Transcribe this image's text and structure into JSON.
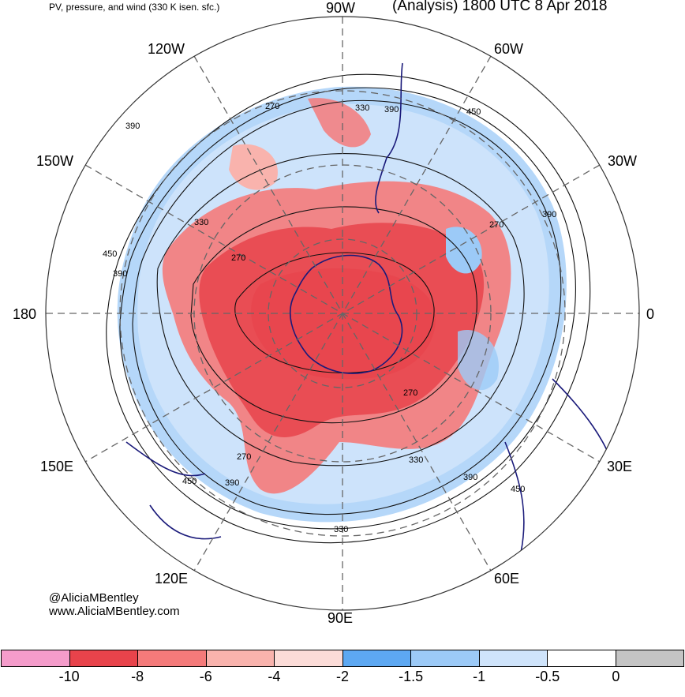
{
  "header": {
    "title_left": "PV, pressure, and wind (330 K isen. sfc.)",
    "title_right": "(Analysis) 1800 UTC 8 Apr 2018"
  },
  "longitude_labels": {
    "top": "90W",
    "top_left": "120W",
    "top_right": "60W",
    "upper_left": "150W",
    "upper_right": "30W",
    "left": "180",
    "right": "0",
    "lower_left": "150E",
    "lower_right": "30E",
    "bottom_left": "120E",
    "bottom_right": "60E",
    "bottom": "90E"
  },
  "contour_labels": [
    "270",
    "330",
    "390",
    "450"
  ],
  "credits": {
    "twitter": "@AliciaMBentley",
    "website": "www.AliciaMBentley.com"
  },
  "legend": {
    "colors": [
      "#f59ccb",
      "#e8434b",
      "#f57a7a",
      "#f9b3ad",
      "#fcdcd8",
      "#5da8f2",
      "#9ccaf7",
      "#cfe4fb",
      "#ffffff",
      "#c4c4c4"
    ],
    "tick_labels": [
      "-10",
      "-8",
      "-6",
      "-4",
      "-2",
      "-1.5",
      "-1",
      "-0.5",
      "0"
    ]
  }
}
